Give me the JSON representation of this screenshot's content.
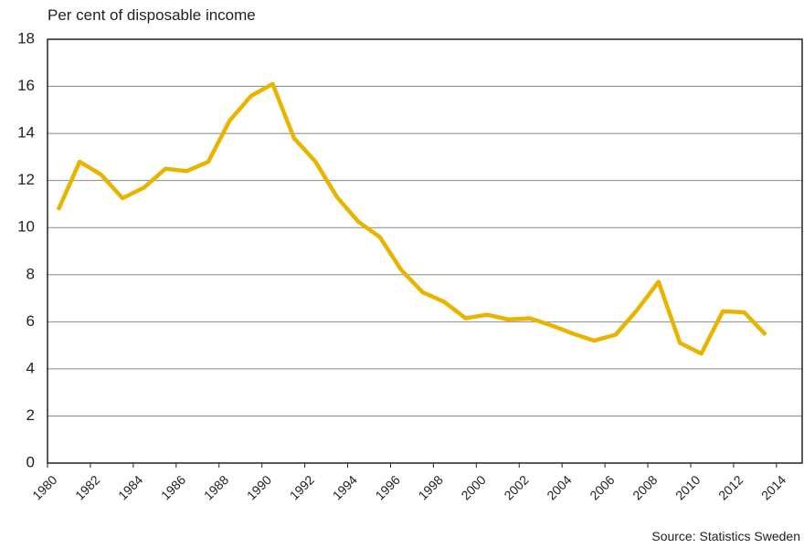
{
  "chart_data": {
    "type": "line",
    "y_label": "Per cent of disposable income",
    "source": "Source: Statistics Sweden",
    "x": [
      1980.5,
      1981.5,
      1982.5,
      1983.5,
      1984.5,
      1985.5,
      1986.5,
      1987.5,
      1988.5,
      1989.5,
      1990.5,
      1991.5,
      1992.5,
      1993.5,
      1994.5,
      1995.5,
      1996.5,
      1997.5,
      1998.5,
      1999.5,
      2000.5,
      2001.5,
      2002.5,
      2003.5,
      2004.5,
      2005.5,
      2006.5,
      2007.5,
      2008.5,
      2009.5,
      2010.5,
      2011.5,
      2012.5,
      2013.5
    ],
    "values": [
      10.75,
      12.8,
      12.25,
      11.25,
      11.7,
      12.5,
      12.4,
      12.8,
      14.55,
      15.6,
      16.1,
      13.8,
      12.8,
      11.3,
      10.25,
      9.6,
      8.2,
      7.25,
      6.85,
      6.15,
      6.3,
      6.1,
      6.15,
      5.85,
      5.5,
      5.2,
      5.45,
      6.5,
      7.7,
      5.1,
      4.65,
      6.45,
      6.4,
      5.45
    ],
    "color": "#e8b400",
    "xlim": [
      1980,
      2015.2
    ],
    "xticks": [
      1980,
      1982,
      1984,
      1986,
      1988,
      1990,
      1992,
      1994,
      1996,
      1998,
      2000,
      2002,
      2004,
      2006,
      2008,
      2010,
      2012,
      2014
    ],
    "ylim": [
      0,
      18
    ],
    "yticks": [
      0,
      2,
      4,
      6,
      8,
      10,
      12,
      14,
      16,
      18
    ],
    "grid": true
  }
}
